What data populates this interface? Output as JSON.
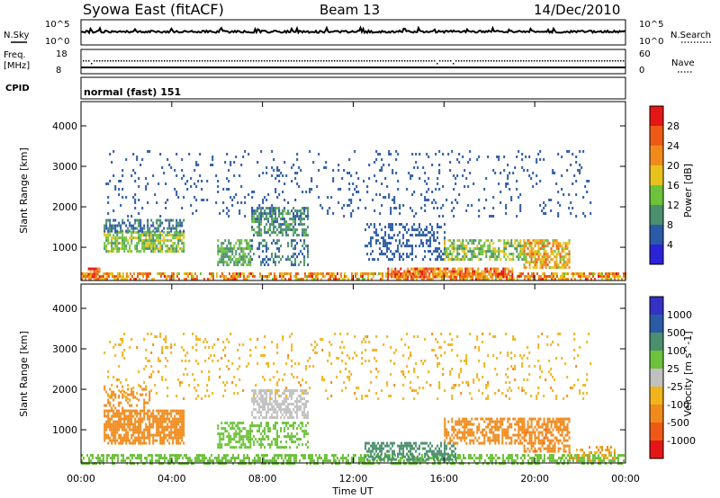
{
  "header": {
    "station": "Syowa East (fitACF)",
    "beam": "Beam 13",
    "date": "14/Dec/2010"
  },
  "params": {
    "nsky_label": "N.Sky",
    "nsky_ticks": [
      "10^5",
      "10^0"
    ],
    "nsearch_label": "N.Search",
    "nsearch_ticks": [
      "10^5",
      "10^0"
    ],
    "freq_label_1": "Freq.",
    "freq_label_2": "[MHz]",
    "freq_ticks": [
      "18",
      "8"
    ],
    "nave_label": "Nave",
    "nave_ticks": [
      "60",
      "0"
    ],
    "cpid_label": "CPID",
    "cpid_value": "normal (fast) 151"
  },
  "xaxis": {
    "label": "Time UT",
    "ticks": [
      "00:00",
      "04:00",
      "08:00",
      "12:00",
      "16:00",
      "20:00",
      "00:00"
    ]
  },
  "colors": {
    "power": [
      "#2b24d6",
      "#2b5aa6",
      "#4b8f6e",
      "#6cc23a",
      "#e8c21c",
      "#f08a1c",
      "#ee5a16",
      "#e51616"
    ],
    "velocity": [
      "#3531c2",
      "#2b5aa6",
      "#4b8f6e",
      "#6cc23a",
      "#c0c0c0",
      "#f0b41c",
      "#f08a1c",
      "#ee5a16",
      "#e51616"
    ]
  },
  "chart_data": [
    {
      "type": "heatmap",
      "title": "Power",
      "ylabel": "Slant Range [km]",
      "xlabel": "",
      "xlim_hours": [
        0,
        24
      ],
      "ylim": [
        180,
        4600
      ],
      "yticks": [
        1000,
        2000,
        3000,
        4000
      ],
      "colorbar": {
        "label": "Power [dB]",
        "ticks": [
          "4",
          "8",
          "12",
          "16",
          "20",
          "24",
          "28"
        ],
        "range": [
          0,
          32
        ]
      },
      "echo_regions": [
        {
          "t": [
            0.0,
            24.0
          ],
          "range": [
            200,
            380
          ],
          "value": 22,
          "density": 0.6
        },
        {
          "t": [
            0.3,
            0.8
          ],
          "range": [
            300,
            500
          ],
          "value": 28,
          "density": 0.8
        },
        {
          "t": [
            1.0,
            4.5
          ],
          "range": [
            900,
            1400
          ],
          "value": 14,
          "density": 0.7
        },
        {
          "t": [
            1.0,
            4.5
          ],
          "range": [
            1400,
            1700
          ],
          "value": 8,
          "density": 0.5
        },
        {
          "t": [
            6.0,
            7.5
          ],
          "range": [
            600,
            1200
          ],
          "value": 12,
          "density": 0.6
        },
        {
          "t": [
            7.5,
            10.0
          ],
          "range": [
            1300,
            2000
          ],
          "value": 10,
          "density": 0.6
        },
        {
          "t": [
            7.5,
            10.0
          ],
          "range": [
            600,
            1200
          ],
          "value": 8,
          "density": 0.3
        },
        {
          "t": [
            12.5,
            16.0
          ],
          "range": [
            700,
            1600
          ],
          "value": 6,
          "density": 0.35
        },
        {
          "t": [
            13.5,
            19.0
          ],
          "range": [
            250,
            500
          ],
          "value": 24,
          "density": 0.75
        },
        {
          "t": [
            16.0,
            19.5
          ],
          "range": [
            700,
            1200
          ],
          "value": 14,
          "density": 0.6
        },
        {
          "t": [
            19.5,
            21.5
          ],
          "range": [
            500,
            1200
          ],
          "value": 20,
          "density": 0.65
        },
        {
          "t": [
            1.0,
            22.5
          ],
          "range": [
            1800,
            3400
          ],
          "value": 6,
          "density": 0.08
        }
      ]
    },
    {
      "type": "heatmap",
      "title": "Velocity",
      "ylabel": "Slant Range [km]",
      "xlabel": "Time UT",
      "xlim_hours": [
        0,
        24
      ],
      "ylim": [
        180,
        4600
      ],
      "yticks": [
        1000,
        2000,
        3000,
        4000
      ],
      "colorbar": {
        "label": "Velocity [m s^-1]",
        "ticks": [
          "1000",
          "500",
          "100",
          "25",
          "-25",
          "-100",
          "-500",
          "-1000"
        ]
      },
      "echo_regions": [
        {
          "t": [
            0.0,
            24.0
          ],
          "range": [
            200,
            400
          ],
          "value": 60,
          "density": 0.55
        },
        {
          "t": [
            1.0,
            4.5
          ],
          "range": [
            700,
            1500
          ],
          "value": -300,
          "density": 0.75
        },
        {
          "t": [
            1.0,
            3.0
          ],
          "range": [
            1500,
            2100
          ],
          "value": -200,
          "density": 0.3
        },
        {
          "t": [
            6.0,
            7.5
          ],
          "range": [
            600,
            1200
          ],
          "value": 60,
          "density": 0.6
        },
        {
          "t": [
            7.5,
            10.0
          ],
          "range": [
            1300,
            2000
          ],
          "value": 0,
          "density": 0.6
        },
        {
          "t": [
            7.5,
            10.0
          ],
          "range": [
            600,
            1200
          ],
          "value": 60,
          "density": 0.35
        },
        {
          "t": [
            12.5,
            16.5
          ],
          "range": [
            250,
            700
          ],
          "value": 300,
          "density": 0.55
        },
        {
          "t": [
            16.0,
            19.5
          ],
          "range": [
            700,
            1300
          ],
          "value": -150,
          "density": 0.55
        },
        {
          "t": [
            19.5,
            21.5
          ],
          "range": [
            500,
            1300
          ],
          "value": -400,
          "density": 0.6
        },
        {
          "t": [
            21.5,
            23.5
          ],
          "range": [
            250,
            600
          ],
          "value": -100,
          "density": 0.4
        },
        {
          "t": [
            1.0,
            22.5
          ],
          "range": [
            1800,
            3400
          ],
          "value": -80,
          "density": 0.08
        }
      ]
    }
  ]
}
